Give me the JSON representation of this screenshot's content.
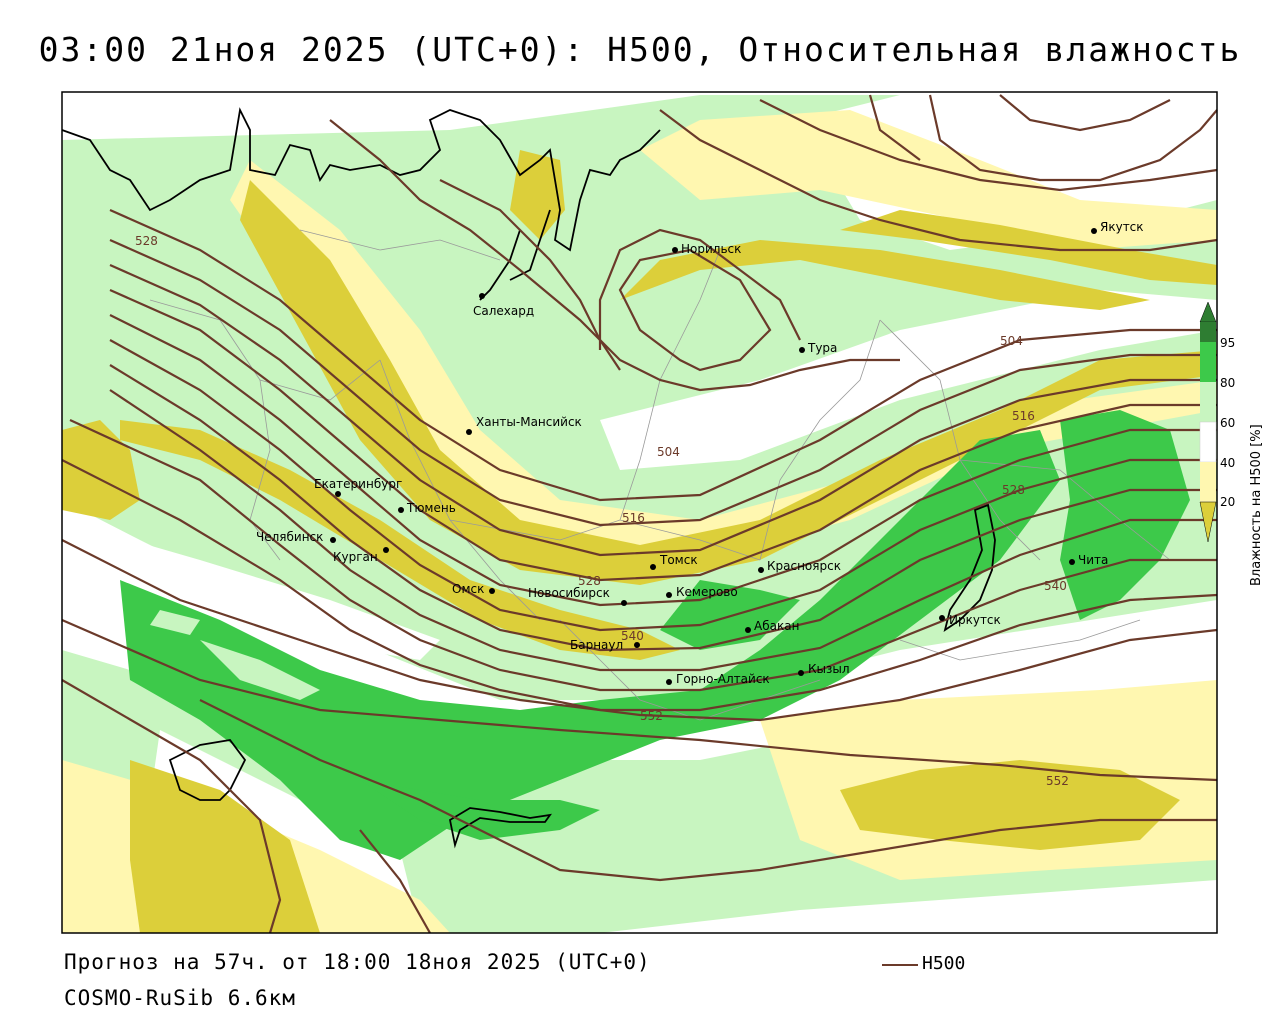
{
  "title": "03:00 21ноя 2025 (UTC+0): H500, Относительная влажность",
  "footer": {
    "forecast": "Прогноз на 57ч. от 18:00 18ноя 2025 (UTC+0)",
    "model": "COSMO-RuSib 6.6км",
    "legend_label": "H500"
  },
  "colorbar": {
    "title": "Влажность на H500 [%]",
    "ticks": [
      "95",
      "80",
      "60",
      "40",
      "20"
    ],
    "colors": {
      "above_95": "#2e7d32",
      "80_95": "#3dc94a",
      "60_80": "#c8f5c0",
      "40_60": "#ffffff",
      "20_40": "#fff7b0",
      "below_20": "#dccf3a"
    }
  },
  "cities": [
    {
      "name": "Якутск"
    },
    {
      "name": "Норильск"
    },
    {
      "name": "Салехард"
    },
    {
      "name": "Тура"
    },
    {
      "name": "Ханты-Мансийск"
    },
    {
      "name": "Екатеринбург"
    },
    {
      "name": "Тюмень"
    },
    {
      "name": "Челябинск"
    },
    {
      "name": "Курган"
    },
    {
      "name": "Омск"
    },
    {
      "name": "Новосибирск"
    },
    {
      "name": "Томск"
    },
    {
      "name": "Кемерово"
    },
    {
      "name": "Красноярск"
    },
    {
      "name": "Барнаул"
    },
    {
      "name": "Абакан"
    },
    {
      "name": "Горно-Алтайск"
    },
    {
      "name": "Кызыл"
    },
    {
      "name": "Иркутск"
    },
    {
      "name": "Чита"
    }
  ],
  "contour_labels": [
    "528",
    "504",
    "504",
    "516",
    "516",
    "528",
    "528",
    "540",
    "540",
    "552",
    "552"
  ],
  "colors": {
    "contour": "#6b3a2a",
    "dry": "#dccf3a",
    "light_dry": "#fff7b0",
    "light_green": "#c8f5c0",
    "green": "#3dc94a",
    "dark_green": "#2e7d32"
  }
}
